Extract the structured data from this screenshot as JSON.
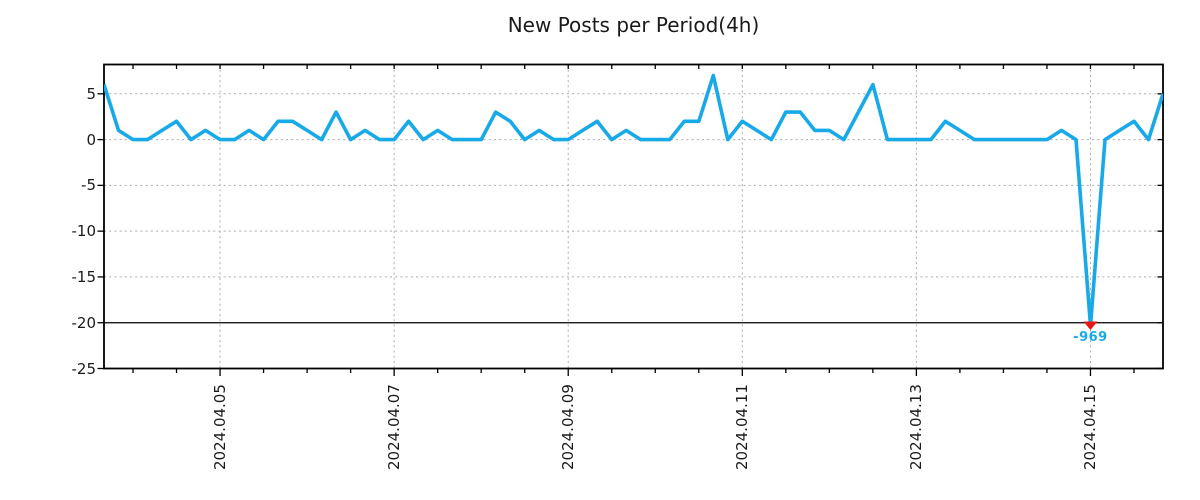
{
  "title": "New Posts per Period(4h)",
  "chart_data": {
    "type": "line",
    "title": "New Posts per Period(4h)",
    "x_start": "2024.04.03 16:00",
    "x_interval": "4h",
    "values": [
      6,
      1,
      0,
      0,
      1,
      2,
      0,
      1,
      0,
      0,
      1,
      0,
      2,
      2,
      1,
      0,
      3,
      0,
      1,
      0,
      0,
      2,
      0,
      1,
      0,
      0,
      0,
      3,
      2,
      0,
      1,
      0,
      0,
      1,
      2,
      0,
      1,
      0,
      0,
      0,
      2,
      2,
      7,
      0,
      2,
      1,
      0,
      3,
      3,
      1,
      1,
      0,
      3,
      6,
      0,
      0,
      0,
      0,
      2,
      1,
      0,
      0,
      0,
      0,
      0,
      0,
      1,
      0,
      -969,
      0,
      1,
      2,
      0,
      5
    ],
    "x_tick_labels": [
      "2024.04.05",
      "2024.04.07",
      "2024.04.09",
      "2024.04.11",
      "2024.04.13",
      "2024.04.15"
    ],
    "x_tick_indices": [
      8,
      20,
      32,
      44,
      56,
      68
    ],
    "y_ticks": [
      5,
      0,
      -5,
      -10,
      -15,
      -20,
      -25
    ],
    "ylim": [
      -25,
      8.2
    ],
    "grid": true,
    "legend_position": "none",
    "solid_hline_y": -20,
    "line_color": "#18a9e8",
    "grid_color": "#aaaaaa",
    "axis_color": "#000000",
    "text_color": "#1a1a1a",
    "anomaly": {
      "index": 68,
      "true_value": -969,
      "label": "-969",
      "clipped_at": -20.3,
      "marker": "triangle-down-icon",
      "marker_color": "#e81717",
      "label_color": "#18a9e8"
    }
  }
}
